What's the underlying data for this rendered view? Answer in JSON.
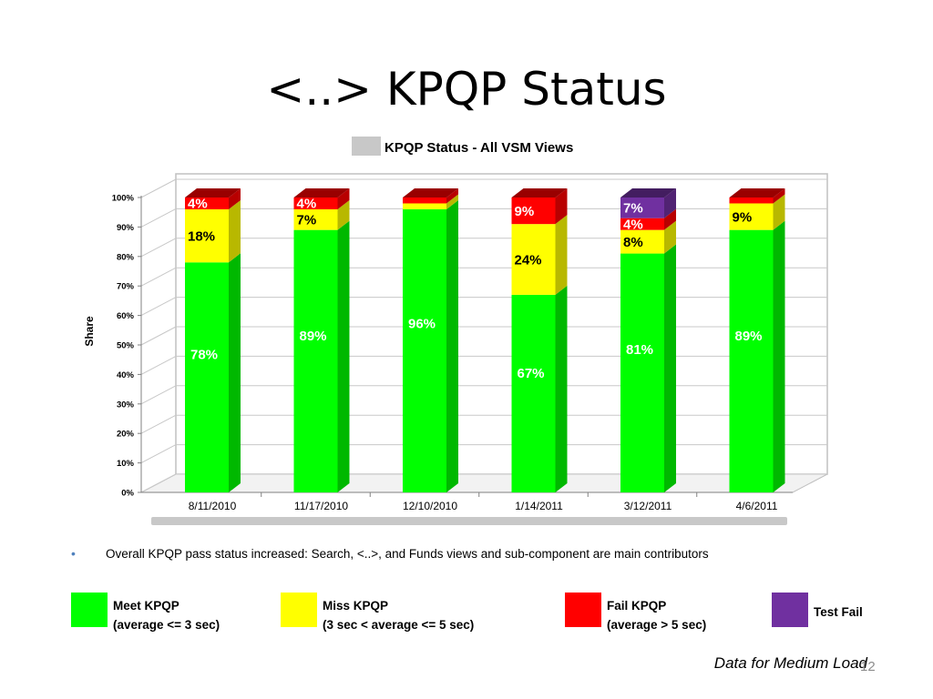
{
  "slide": {
    "title": "<..> KPQP Status",
    "bullet": "Overall KPQP pass status increased: Search, <..>, and Funds views and sub-component are main contributors",
    "footer": "Data for Medium Load",
    "page_number": "12"
  },
  "legend": [
    {
      "line1": "Meet KPQP",
      "line2": "(average <= 3 sec)",
      "color": "#00ff00"
    },
    {
      "line1": "Miss KPQP",
      "line2": "(3 sec < average <= 5 sec)",
      "color": "#ffff00"
    },
    {
      "line1": "Fail KPQP",
      "line2": "(average > 5 sec)",
      "color": "#ff0000"
    },
    {
      "line1": "Test Fail",
      "line2": "",
      "color": "#7030a0"
    }
  ],
  "chart_data": {
    "type": "bar",
    "stacked": true,
    "title": "KPQP Status - All VSM Views",
    "xlabel": "",
    "ylabel": "Share",
    "ylim": [
      0,
      100
    ],
    "y_ticks": [
      "0%",
      "10%",
      "20%",
      "30%",
      "40%",
      "50%",
      "60%",
      "70%",
      "80%",
      "90%",
      "100%"
    ],
    "grid": true,
    "legend": "none",
    "categories": [
      "8/11/2010",
      "11/17/2010",
      "12/10/2010",
      "1/14/2011",
      "3/12/2011",
      "4/6/2011"
    ],
    "series": [
      {
        "color": "#00ff00",
        "values": [
          78,
          89,
          96,
          67,
          81,
          89
        ],
        "labels": [
          "78%",
          "89%",
          "96%",
          "67%",
          "81%",
          "89%"
        ]
      },
      {
        "color": "#ffff00",
        "values": [
          18,
          7,
          2,
          24,
          8,
          9
        ],
        "labels": [
          "18%",
          "7%",
          "",
          "24%",
          "8%",
          "9%"
        ]
      },
      {
        "color": "#ff0000",
        "values": [
          4,
          4,
          2,
          9,
          4,
          2
        ],
        "labels": [
          "4%",
          "4%",
          "",
          "9%",
          "4%",
          ""
        ]
      },
      {
        "color": "#7030a0",
        "values": [
          0,
          0,
          0,
          0,
          7,
          0
        ],
        "labels": [
          "",
          "",
          "",
          "",
          "7%",
          ""
        ]
      }
    ]
  }
}
